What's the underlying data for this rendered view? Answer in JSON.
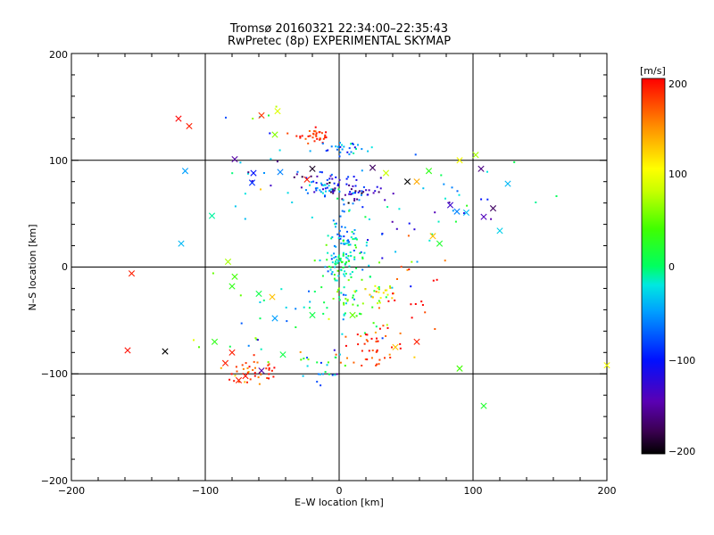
{
  "chart_data": {
    "type": "scatter",
    "title": "Tromsø 20160321 22:34:00–22:35:43",
    "subtitle": "RwPretec (8p) EXPERIMENTAL SKYMAP",
    "xlabel": "E–W location [km]",
    "ylabel": "N–S location [km]",
    "xlim": [
      -200,
      200
    ],
    "ylim": [
      -200,
      200
    ],
    "xticks": [
      "−200",
      "−100",
      "0",
      "100",
      "200"
    ],
    "yticks": [
      "−200",
      "−100",
      "0",
      "100",
      "200"
    ],
    "grid_lines": [
      -100,
      0,
      100
    ],
    "colorbar": {
      "label": "[m/s]",
      "range": [
        -200,
        200
      ],
      "ticks": [
        "200",
        "100",
        "0",
        "−100",
        "−200"
      ]
    },
    "clusters": [
      {
        "x": -18,
        "y": 123,
        "sx": 7,
        "sy": 3,
        "n": 35,
        "v": 185,
        "vs": 15
      },
      {
        "x": 2,
        "y": 111,
        "sx": 8,
        "sy": 5,
        "n": 30,
        "v": -60,
        "vs": 30
      },
      {
        "x": -10,
        "y": 80,
        "sx": 15,
        "sy": 6,
        "n": 40,
        "v": -130,
        "vs": 40
      },
      {
        "x": 15,
        "y": 70,
        "sx": 12,
        "sy": 5,
        "n": 40,
        "v": -120,
        "vs": 40
      },
      {
        "x": -15,
        "y": 73,
        "sx": 6,
        "sy": 4,
        "n": 20,
        "v": -40,
        "vs": 20
      },
      {
        "x": 5,
        "y": 30,
        "sx": 6,
        "sy": 20,
        "n": 60,
        "v": -40,
        "vs": 30
      },
      {
        "x": 5,
        "y": 5,
        "sx": 8,
        "sy": 8,
        "n": 70,
        "v": -10,
        "vs": 30
      },
      {
        "x": 10,
        "y": -30,
        "sx": 15,
        "sy": 15,
        "n": 60,
        "v": 20,
        "vs": 30
      },
      {
        "x": 32,
        "y": -25,
        "sx": 8,
        "sy": 5,
        "n": 20,
        "v": 110,
        "vs": 20
      },
      {
        "x": 25,
        "y": -78,
        "sx": 15,
        "sy": 10,
        "n": 45,
        "v": 180,
        "vs": 20
      },
      {
        "x": -62,
        "y": -98,
        "sx": 12,
        "sy": 8,
        "n": 40,
        "v": 180,
        "vs": 25
      },
      {
        "x": -15,
        "y": -92,
        "sx": 10,
        "sy": 8,
        "n": 25,
        "v": -40,
        "vs": 50
      },
      {
        "x": 60,
        "y": -30,
        "sx": 20,
        "sy": 20,
        "n": 20,
        "v": 180,
        "vs": 30
      },
      {
        "x": 85,
        "y": 60,
        "sx": 30,
        "sy": 20,
        "n": 25,
        "v": -60,
        "vs": 80
      },
      {
        "x": -60,
        "y": -50,
        "sx": 20,
        "sy": 20,
        "n": 25,
        "v": 0,
        "vs": 60
      },
      {
        "x": 40,
        "y": 35,
        "sx": 25,
        "sy": 20,
        "n": 20,
        "v": -30,
        "vs": 60
      },
      {
        "x": -50,
        "y": 95,
        "sx": 25,
        "sy": 30,
        "n": 25,
        "v": -40,
        "vs": 80
      }
    ],
    "crosses": [
      {
        "x": -120,
        "y": 139,
        "v": 200
      },
      {
        "x": -112,
        "y": 132,
        "v": 190
      },
      {
        "x": -48,
        "y": 124,
        "v": 60
      },
      {
        "x": -58,
        "y": 142,
        "v": 180
      },
      {
        "x": -46,
        "y": 146,
        "v": 90
      },
      {
        "x": -115,
        "y": 90,
        "v": -50
      },
      {
        "x": -95,
        "y": 48,
        "v": -10
      },
      {
        "x": -118,
        "y": 22,
        "v": -40
      },
      {
        "x": -155,
        "y": -6,
        "v": 190
      },
      {
        "x": -158,
        "y": -78,
        "v": 195
      },
      {
        "x": -130,
        "y": -79,
        "v": -200
      },
      {
        "x": -78,
        "y": 101,
        "v": -150
      },
      {
        "x": -64,
        "y": 88,
        "v": -100
      },
      {
        "x": -65,
        "y": 79,
        "v": -90
      },
      {
        "x": -44,
        "y": 89,
        "v": -60
      },
      {
        "x": -20,
        "y": 92,
        "v": -190
      },
      {
        "x": -24,
        "y": 82,
        "v": 190
      },
      {
        "x": 25,
        "y": 93,
        "v": -170
      },
      {
        "x": 35,
        "y": 88,
        "v": 80
      },
      {
        "x": 51,
        "y": 80,
        "v": -200
      },
      {
        "x": 58,
        "y": 80,
        "v": 140
      },
      {
        "x": 67,
        "y": 90,
        "v": 30
      },
      {
        "x": 106,
        "y": 92,
        "v": -160
      },
      {
        "x": 126,
        "y": 78,
        "v": -40
      },
      {
        "x": 83,
        "y": 58,
        "v": -130
      },
      {
        "x": 88,
        "y": 52,
        "v": -60
      },
      {
        "x": 95,
        "y": 51,
        "v": -40
      },
      {
        "x": 108,
        "y": 47,
        "v": -140
      },
      {
        "x": 115,
        "y": 55,
        "v": -170
      },
      {
        "x": 120,
        "y": 34,
        "v": -30
      },
      {
        "x": 70,
        "y": 29,
        "v": 130
      },
      {
        "x": 75,
        "y": 22,
        "v": 20
      },
      {
        "x": -83,
        "y": 5,
        "v": 70
      },
      {
        "x": -78,
        "y": -9,
        "v": 40
      },
      {
        "x": -80,
        "y": -18,
        "v": 30
      },
      {
        "x": -60,
        "y": -25,
        "v": 10
      },
      {
        "x": -50,
        "y": -28,
        "v": 130
      },
      {
        "x": -48,
        "y": -48,
        "v": -50
      },
      {
        "x": -20,
        "y": -45,
        "v": 10
      },
      {
        "x": 10,
        "y": -45,
        "v": 50
      },
      {
        "x": -93,
        "y": -70,
        "v": 30
      },
      {
        "x": -80,
        "y": -80,
        "v": 190
      },
      {
        "x": -85,
        "y": -90,
        "v": 190
      },
      {
        "x": -70,
        "y": -102,
        "v": 195
      },
      {
        "x": -75,
        "y": -106,
        "v": 190
      },
      {
        "x": -58,
        "y": -97,
        "v": -150
      },
      {
        "x": -42,
        "y": -82,
        "v": 10
      },
      {
        "x": 42,
        "y": -75,
        "v": 130
      },
      {
        "x": 58,
        "y": -70,
        "v": 190
      },
      {
        "x": 90,
        "y": -95,
        "v": 40
      },
      {
        "x": 108,
        "y": -130,
        "v": 20
      },
      {
        "x": 200,
        "y": -92,
        "v": 100
      },
      {
        "x": 90,
        "y": 100,
        "v": 100
      },
      {
        "x": 102,
        "y": 105,
        "v": 70
      }
    ]
  }
}
